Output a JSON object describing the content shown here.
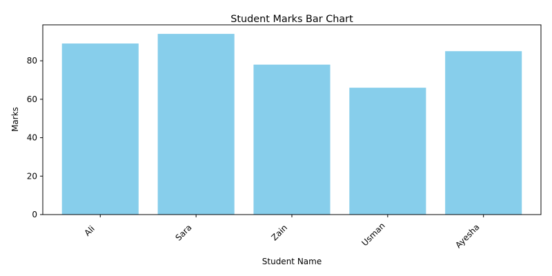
{
  "chart_data": {
    "type": "bar",
    "title": "Student Marks Bar Chart",
    "xlabel": "Student Name",
    "ylabel": "Marks",
    "categories": [
      "Ali",
      "Sara",
      "Zain",
      "Usman",
      "Ayesha"
    ],
    "values": [
      89,
      94,
      78,
      66,
      85
    ],
    "ylim": [
      0,
      98.7
    ],
    "yticks": [
      0,
      20,
      40,
      60,
      80
    ],
    "bar_color": "#87ceeb",
    "x_tick_rotation_deg": 45,
    "grid": false,
    "legend": "none"
  }
}
